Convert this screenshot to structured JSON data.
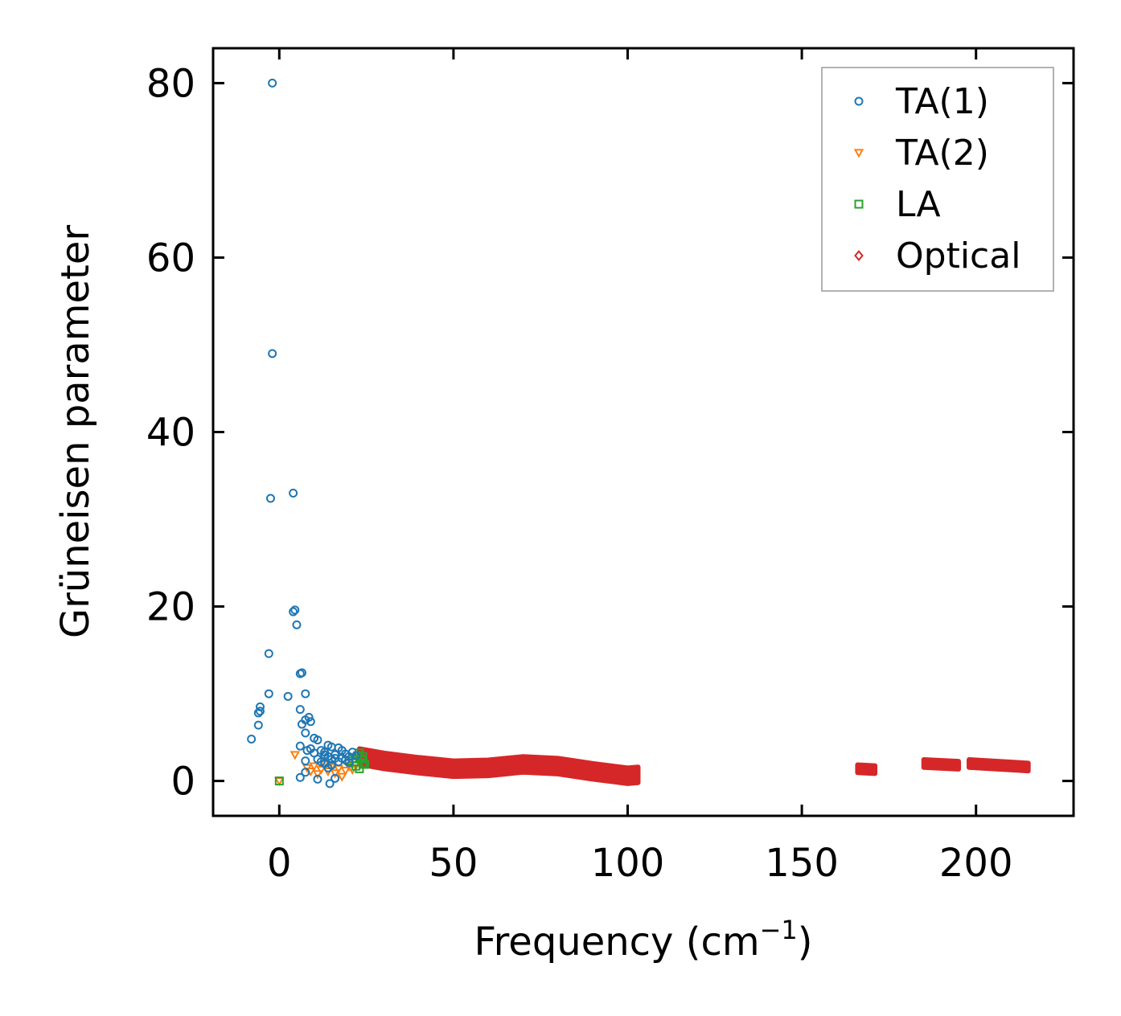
{
  "chart_data": {
    "type": "scatter",
    "title": "",
    "xlabel": "Frequency (cm",
    "xlabel_sup": "−1",
    "xlabel_close": ")",
    "ylabel": "Grüneisen parameter",
    "xlim": [
      -19,
      228
    ],
    "ylim": [
      -4,
      84
    ],
    "xticks": [
      0,
      50,
      100,
      150,
      200
    ],
    "yticks": [
      0,
      20,
      40,
      60,
      80
    ],
    "xtick_labels": [
      "0",
      "50",
      "100",
      "150",
      "200"
    ],
    "ytick_labels": [
      "0",
      "20",
      "40",
      "60",
      "80"
    ],
    "legend_position": "top-right",
    "series": [
      {
        "name": "TA(1)",
        "marker": "circle",
        "color": "#1f77b4",
        "points": [
          [
            -2,
            80
          ],
          [
            -2,
            49
          ],
          [
            -2.5,
            32.4
          ],
          [
            4,
            33
          ],
          [
            4,
            19.4
          ],
          [
            4.5,
            19.6
          ],
          [
            5,
            17.9
          ],
          [
            6,
            12.3
          ],
          [
            6.5,
            12.4
          ],
          [
            -3,
            14.6
          ],
          [
            -3,
            10
          ],
          [
            2.5,
            9.7
          ],
          [
            7.5,
            10
          ],
          [
            -5.5,
            8.5
          ],
          [
            -5.5,
            8
          ],
          [
            -6,
            7.8
          ],
          [
            -6,
            6.4
          ],
          [
            -8,
            4.8
          ],
          [
            6,
            8.2
          ],
          [
            8.5,
            7.3
          ],
          [
            7.5,
            7
          ],
          [
            9,
            6.8
          ],
          [
            6.5,
            6.5
          ],
          [
            7.5,
            5.5
          ],
          [
            10,
            4.9
          ],
          [
            11,
            4.7
          ],
          [
            6,
            4
          ],
          [
            9,
            3.7
          ],
          [
            8,
            3.5
          ],
          [
            10,
            3.2
          ],
          [
            12,
            3.5
          ],
          [
            13,
            3
          ],
          [
            11,
            2.5
          ],
          [
            14,
            2.8
          ],
          [
            15,
            2.5
          ],
          [
            16,
            3
          ],
          [
            17,
            2.2
          ],
          [
            18,
            3.5
          ],
          [
            19,
            3.1
          ],
          [
            20,
            2.8
          ],
          [
            21,
            3.3
          ],
          [
            22,
            2.9
          ],
          [
            14,
            4.1
          ],
          [
            15,
            3.9
          ],
          [
            17,
            3.8
          ],
          [
            13,
            2
          ],
          [
            15,
            1.8
          ],
          [
            14,
            1.5
          ],
          [
            12,
            2.2
          ],
          [
            7.5,
            2.3
          ],
          [
            7.5,
            1
          ],
          [
            6,
            0.4
          ],
          [
            11,
            0.2
          ],
          [
            14.5,
            -0.3
          ],
          [
            16,
            0.3
          ],
          [
            18,
            2.6
          ],
          [
            19,
            2.4
          ],
          [
            20,
            2.1
          ],
          [
            16,
            2.6
          ],
          [
            13,
            3.3
          ]
        ]
      },
      {
        "name": "TA(2)",
        "marker": "triangle-down",
        "color": "#ff7f0e",
        "points": [
          [
            0,
            0
          ],
          [
            4.5,
            3
          ],
          [
            8,
            1.5
          ],
          [
            9,
            1.1
          ],
          [
            10,
            1.7
          ],
          [
            11,
            0.8
          ],
          [
            12,
            1.3
          ],
          [
            13,
            1.9
          ],
          [
            14,
            1.1
          ],
          [
            15,
            1.6
          ],
          [
            16,
            0.9
          ],
          [
            17,
            1.4
          ],
          [
            18,
            0.5
          ],
          [
            19,
            1.2
          ],
          [
            20,
            1.7
          ],
          [
            21,
            1.3
          ],
          [
            22,
            1.8
          ],
          [
            23,
            2.1
          ]
        ]
      },
      {
        "name": "LA",
        "marker": "square",
        "color": "#2ca02c",
        "points": [
          [
            0,
            0
          ],
          [
            20,
            2.3
          ],
          [
            21,
            2.6
          ],
          [
            22,
            2.2
          ],
          [
            22.5,
            2.9
          ],
          [
            23,
            3.2
          ],
          [
            23.5,
            2.5
          ],
          [
            24,
            2.8
          ],
          [
            24,
            2
          ],
          [
            24.5,
            1.9
          ],
          [
            22,
            1.7
          ],
          [
            23,
            1.4
          ]
        ]
      },
      {
        "name": "Optical",
        "marker": "diamond",
        "color": "#d62728",
        "band_segments": [
          [
            [
              23,
              2.8
            ],
            [
              30,
              2.3
            ],
            [
              40,
              1.8
            ],
            [
              50,
              1.4
            ],
            [
              60,
              1.5
            ],
            [
              70,
              1.9
            ],
            [
              80,
              1.7
            ],
            [
              90,
              1.1
            ],
            [
              100,
              0.6
            ],
            [
              103,
              0.7
            ]
          ],
          [
            [
              166,
              1.4
            ],
            [
              171,
              1.3
            ]
          ],
          [
            [
              185,
              2
            ],
            [
              195,
              1.8
            ]
          ],
          [
            [
              198,
              2
            ],
            [
              215,
              1.6
            ]
          ]
        ],
        "band_halfwidths": [
          0.9,
          0.45,
          0.45,
          0.45
        ]
      }
    ]
  }
}
